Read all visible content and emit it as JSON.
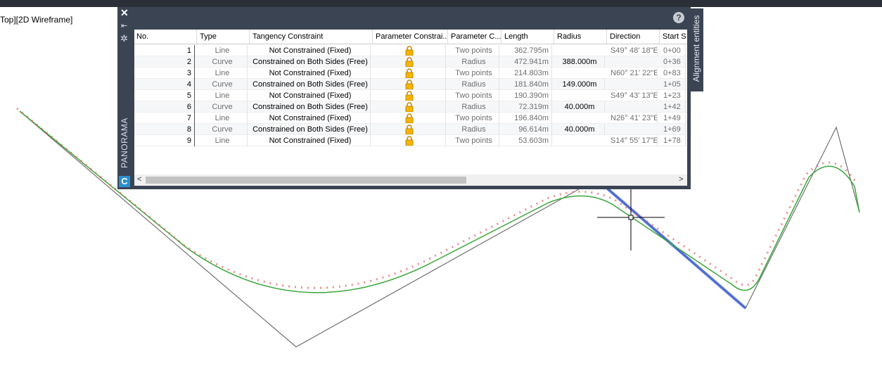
{
  "viewport_label": "Top][2D Wireframe]",
  "panel": {
    "title": "PANORAMA",
    "tab": "Alignment entities",
    "help": "?",
    "columns": [
      "No.",
      "Type",
      "Tangency Constraint",
      "Parameter Constrai...",
      "Parameter C...",
      "Length",
      "Radius",
      "Direction",
      "Start S"
    ],
    "rows": [
      {
        "no": "1",
        "type": "Line",
        "tangency": "Not Constrained (Fixed)",
        "parameter": "Two points",
        "length": "362.795m",
        "direction": "S49° 48' 18\"E",
        "start": "0+00"
      },
      {
        "no": "2",
        "type": "Curve",
        "tangency": "Constrained on Both Sides (Free)",
        "parameter": "Radius",
        "length": "472.941m",
        "radius": "388.000m",
        "start": "0+36"
      },
      {
        "no": "3",
        "type": "Line",
        "tangency": "Not Constrained (Fixed)",
        "parameter": "Two points",
        "length": "214.803m",
        "direction": "N60° 21' 22\"E",
        "start": "0+83"
      },
      {
        "no": "4",
        "type": "Curve",
        "tangency": "Constrained on Both Sides (Free)",
        "parameter": "Radius",
        "length": "181.840m",
        "radius": "149.000m",
        "start": "1+05"
      },
      {
        "no": "5",
        "type": "Line",
        "tangency": "Not Constrained (Fixed)",
        "parameter": "Two points",
        "length": "190.390m",
        "direction": "S49° 43' 13\"E",
        "start": "1+23"
      },
      {
        "no": "6",
        "type": "Curve",
        "tangency": "Constrained on Both Sides (Free)",
        "parameter": "Radius",
        "length": "72.319m",
        "radius": "40.000m",
        "start": "1+42"
      },
      {
        "no": "7",
        "type": "Line",
        "tangency": "Not Constrained (Fixed)",
        "parameter": "Two points",
        "length": "196.840m",
        "direction": "N26° 41' 23\"E",
        "start": "1+49"
      },
      {
        "no": "8",
        "type": "Curve",
        "tangency": "Constrained on Both Sides (Free)",
        "parameter": "Radius",
        "length": "96.614m",
        "radius": "40.000m",
        "start": "1+69"
      },
      {
        "no": "9",
        "type": "Line",
        "tangency": "Not Constrained (Fixed)",
        "parameter": "Two points",
        "length": "53.603m",
        "direction": "S14° 55' 17\"E",
        "start": "1+78"
      }
    ]
  }
}
